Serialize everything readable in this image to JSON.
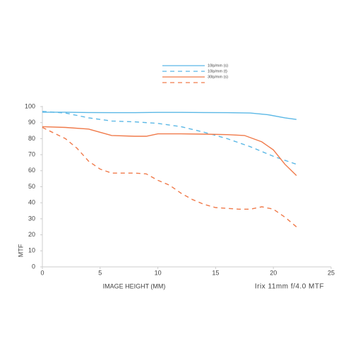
{
  "chart_data": {
    "type": "line",
    "x_label": "IMAGE HEIGHT (MM)",
    "y_label": "MTF",
    "annotation": "Irix 11mm f/4.0 MTF",
    "xlim": [
      0,
      25
    ],
    "xticks": [
      0,
      5,
      10,
      15,
      20,
      25
    ],
    "ylim": [
      0,
      100
    ],
    "yticks": [
      0,
      10,
      20,
      30,
      40,
      50,
      60,
      70,
      80,
      90,
      100
    ],
    "series": [
      {
        "name": "10lp/mm (s)",
        "color": "#5bb8e6",
        "dashed": false,
        "x": [
          0,
          2,
          4,
          6,
          8,
          10,
          12,
          14,
          16,
          18,
          19.5,
          21,
          22
        ],
        "values": [
          96.5,
          96.5,
          96.3,
          96.2,
          96.2,
          96.4,
          96.4,
          96.3,
          96.2,
          96,
          95,
          93,
          92
        ]
      },
      {
        "name": "10lp/mm (t)",
        "color": "#5bb8e6",
        "dashed": true,
        "x": [
          0,
          2,
          4,
          6,
          8,
          10,
          12,
          14,
          16,
          18,
          20,
          22
        ],
        "values": [
          97,
          96,
          93,
          91,
          90.5,
          89.5,
          87.5,
          84,
          80,
          75,
          69,
          64
        ]
      },
      {
        "name": "30lp/mm (s)",
        "color": "#f07a4a",
        "dashed": false,
        "x": [
          0,
          2,
          4,
          6,
          8,
          9,
          10,
          12,
          14,
          16,
          17.5,
          19,
          20,
          21,
          22
        ],
        "values": [
          87.5,
          87,
          86,
          82,
          81.5,
          81.5,
          83,
          83,
          82.8,
          82.5,
          82,
          78,
          73,
          64,
          57
        ]
      },
      {
        "name": null,
        "color": "#f07a4a",
        "dashed": true,
        "x": [
          0,
          2,
          3,
          4,
          5,
          6,
          7,
          8,
          9,
          10,
          11,
          12,
          13,
          14,
          15,
          16,
          17,
          18,
          19,
          20,
          21,
          22
        ],
        "values": [
          87,
          80,
          74,
          66,
          61,
          58.5,
          58.5,
          58.5,
          58,
          54,
          51,
          46,
          42,
          39,
          37,
          36.5,
          36,
          36,
          37.5,
          36,
          31,
          25
        ]
      }
    ]
  }
}
